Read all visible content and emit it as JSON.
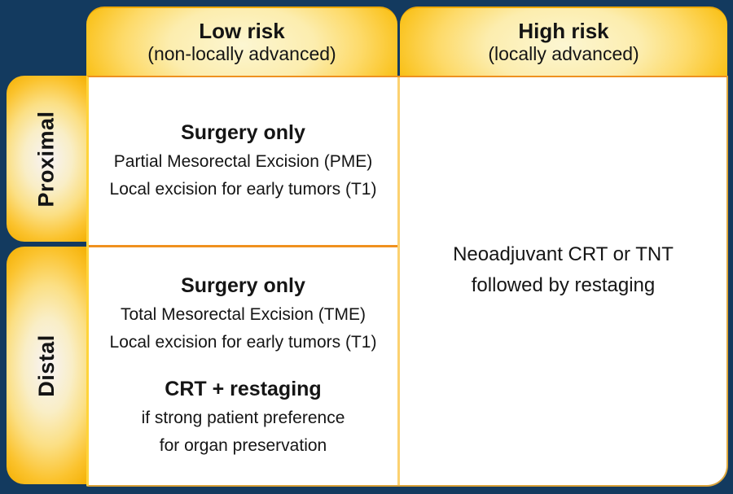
{
  "figure": {
    "type": "treatment-decision-matrix",
    "columns": [
      {
        "title": "Low risk",
        "subtitle": "(non-locally advanced)"
      },
      {
        "title": "High risk",
        "subtitle": "(locally advanced)"
      }
    ],
    "rows": [
      {
        "label": "Proximal"
      },
      {
        "label": "Distal"
      }
    ],
    "cells": {
      "proximal_low_risk": {
        "heading": "Surgery only",
        "line1": "Partial Mesorectal Excision (PME)",
        "line2": "Local excision for early tumors (T1)"
      },
      "distal_low_risk": {
        "heading": "Surgery only",
        "line1": "Total Mesorectal Excision (TME)",
        "line2": "Local excision for early tumors (T1)",
        "heading2": "CRT + restaging",
        "line3": "if strong patient preference",
        "line4": "for organ preservation"
      },
      "high_risk": {
        "line1": "Neoadjuvant CRT or TNT",
        "line2": "followed by restaging"
      }
    },
    "colors": {
      "background_navy": "#133a5f",
      "gold_edge": "#f2ab01",
      "gold_center": "#fcf6d2",
      "divider_orange": "#f0911f",
      "divider_gold": "#fcd170",
      "panel_border_gold": "#dfa93e",
      "text": "#151515"
    }
  }
}
